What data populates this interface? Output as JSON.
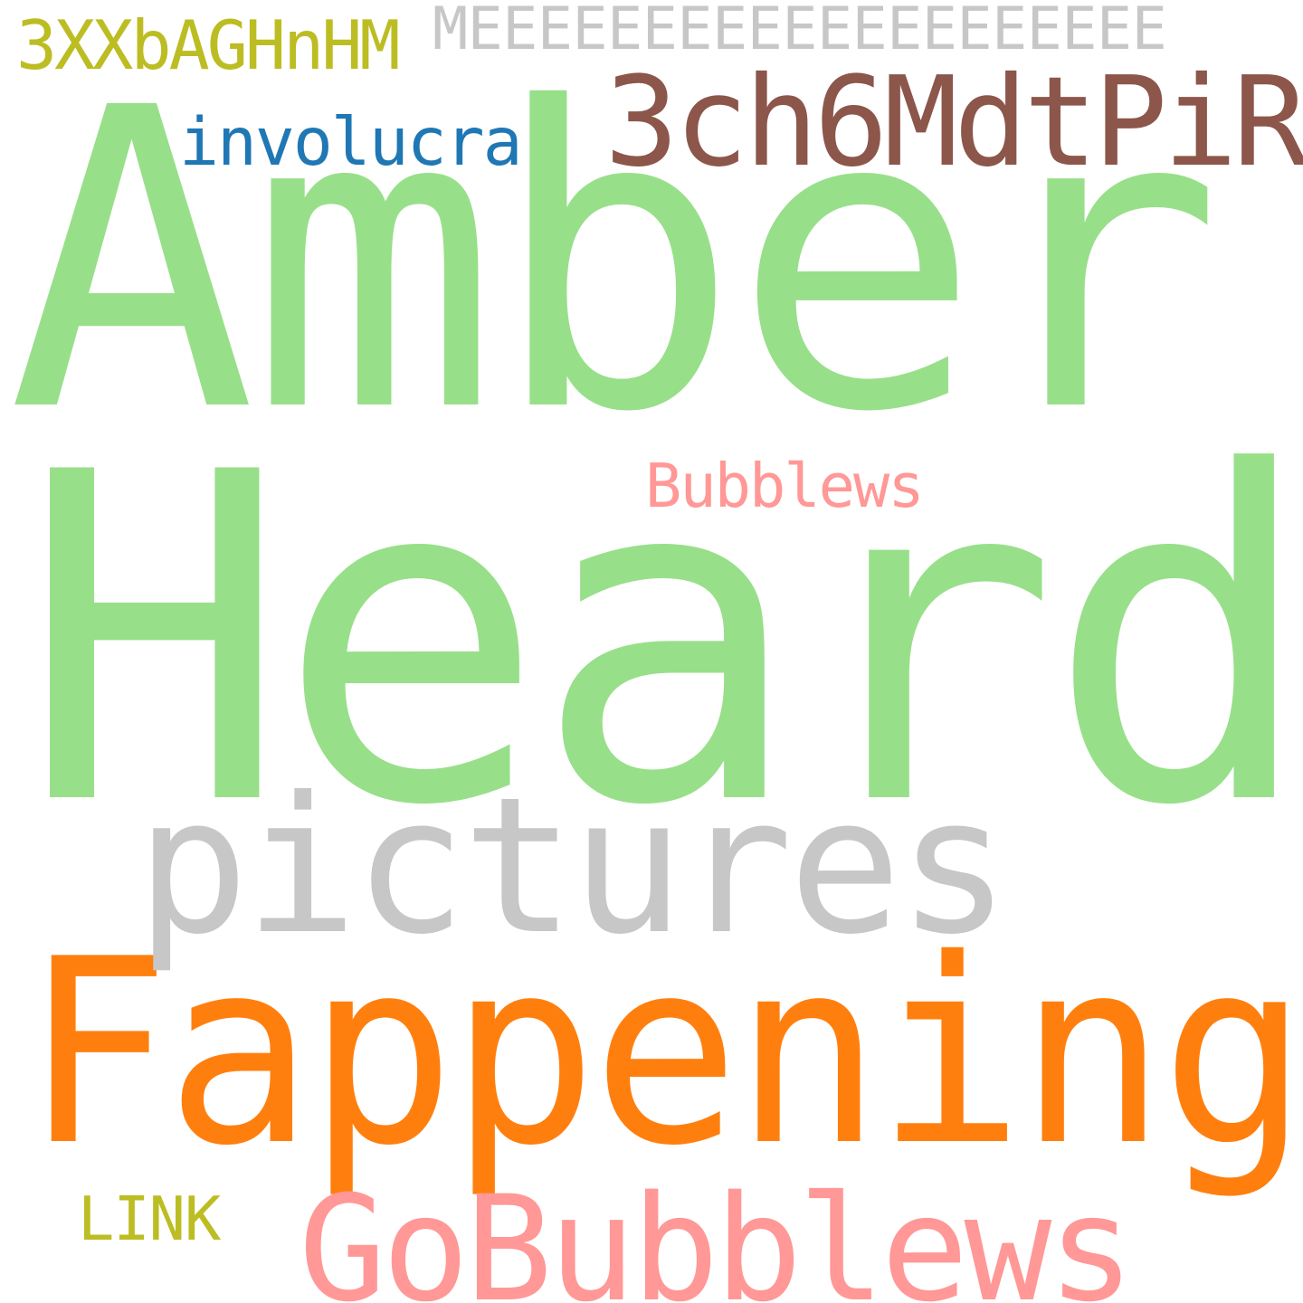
{
  "word_cloud": {
    "background": "#ffffff",
    "words": [
      {
        "id": "amber",
        "text": "Amber",
        "color": "#98df8a"
      },
      {
        "id": "heard",
        "text": "Heard",
        "color": "#98df8a"
      },
      {
        "id": "fappening",
        "text": "Fappening",
        "color": "#ff7f0e"
      },
      {
        "id": "pictures",
        "text": "pictures",
        "color": "#c7c7c7"
      },
      {
        "id": "gobubblews",
        "text": "GoBubblews",
        "color": "#ff9896"
      },
      {
        "id": "3ch6",
        "text": "3ch6MdtPiR",
        "color": "#8c564b"
      },
      {
        "id": "meee",
        "text": "MEEEEEEEEEEEEEEEEEEEE",
        "color": "#c7c7c7"
      },
      {
        "id": "3xxb",
        "text": "3XXbAGHnHM",
        "color": "#bcbd22"
      },
      {
        "id": "involucra",
        "text": "involucra",
        "color": "#1f77b4"
      },
      {
        "id": "bubblews",
        "text": "Bubblews",
        "color": "#ff9896"
      },
      {
        "id": "link",
        "text": "LINK",
        "color": "#bcbd22"
      }
    ]
  }
}
